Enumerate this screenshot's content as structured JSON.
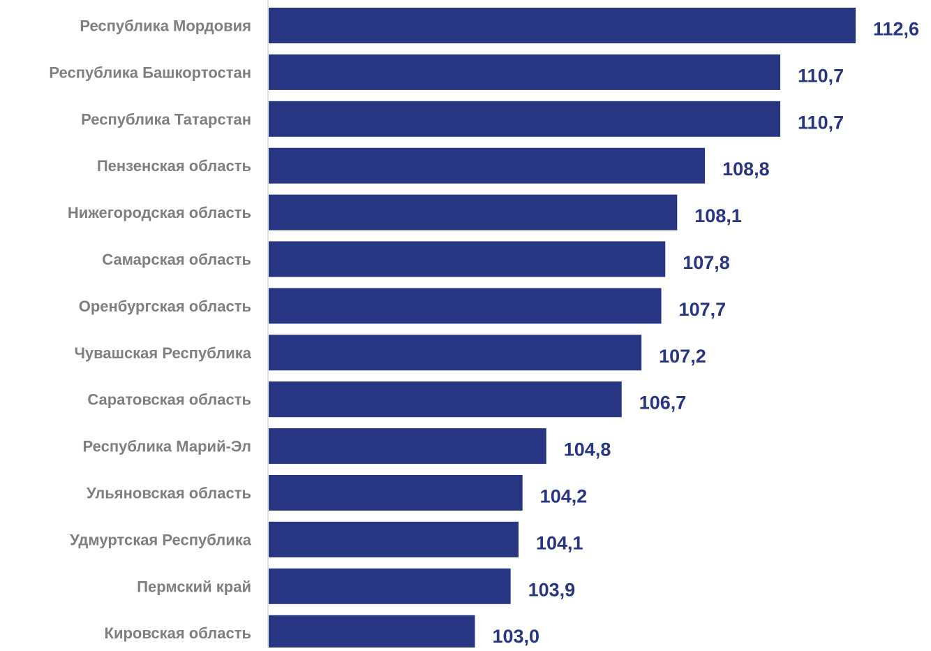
{
  "chart_data": {
    "type": "bar",
    "orientation": "horizontal",
    "categories": [
      "Республика Мордовия",
      "Республика Башкортостан",
      "Республика Татарстан",
      "Пензенская область",
      "Нижегородская область",
      "Самарская область",
      "Оренбургская область",
      "Чувашская Республика",
      "Саратовская область",
      "Республика Марий-Эл",
      "Ульяновская область",
      "Удмуртская Республика",
      "Пермский край",
      "Кировская область"
    ],
    "values": [
      112.6,
      110.7,
      110.7,
      108.8,
      108.1,
      107.8,
      107.7,
      107.2,
      106.7,
      104.8,
      104.2,
      104.1,
      103.9,
      103.0
    ],
    "data_labels": [
      "112,6",
      "110,7",
      "110,7",
      "108,8",
      "108,1",
      "107,8",
      "107,7",
      "107,2",
      "106,7",
      "104,8",
      "104,2",
      "104,1",
      "103,9",
      "103,0"
    ],
    "title": "",
    "xlabel": "",
    "ylabel": "",
    "xlim": [
      97.8,
      112.6
    ],
    "grid": false,
    "legend": "none",
    "bar_color": "#283583",
    "value_label_color": "#283583",
    "category_label_color": "#7f7f7f",
    "axis_line_color": "#d9d9d9"
  }
}
